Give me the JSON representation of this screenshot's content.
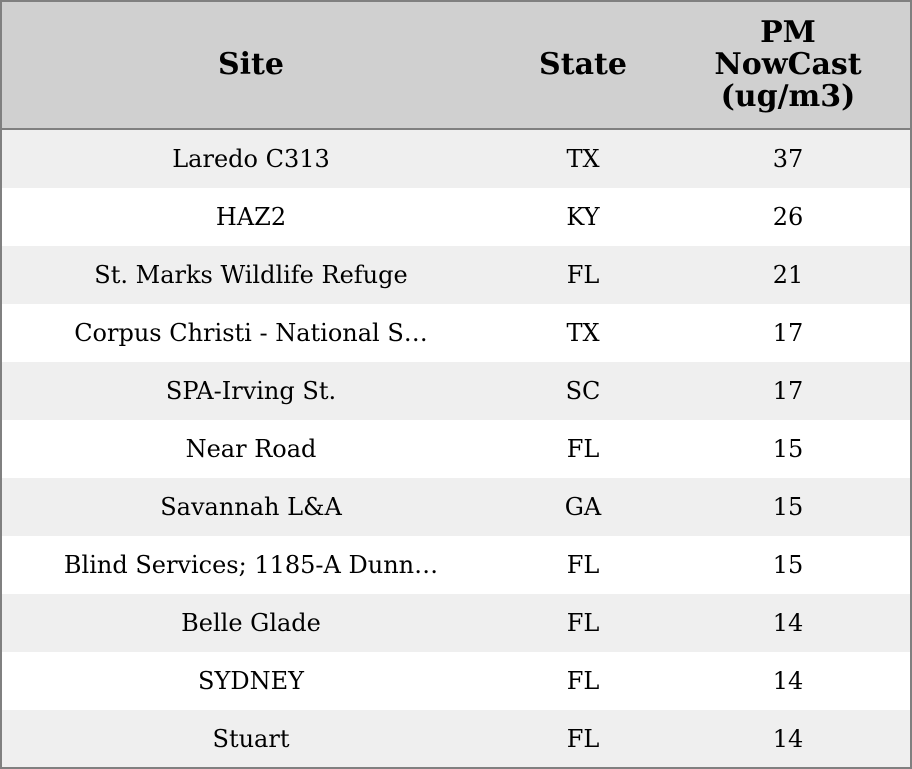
{
  "table": {
    "columns": [
      "Site",
      "State",
      "PM NowCast (ug/m3)"
    ],
    "rows": [
      [
        "Laredo C313",
        "TX",
        37
      ],
      [
        "HAZ2",
        "KY",
        26
      ],
      [
        "St. Marks Wildlife Refuge",
        "FL",
        21
      ],
      [
        "Corpus Christi - National S…",
        "TX",
        17
      ],
      [
        "SPA-Irving St.",
        "SC",
        17
      ],
      [
        "Near Road",
        "FL",
        15
      ],
      [
        "Savannah L&A",
        "GA",
        15
      ],
      [
        "Blind Services; 1185-A Dunn…",
        "FL",
        15
      ],
      [
        "Belle Glade",
        "FL",
        14
      ],
      [
        "SYDNEY",
        "FL",
        14
      ],
      [
        "Stuart",
        "FL",
        14
      ]
    ]
  }
}
